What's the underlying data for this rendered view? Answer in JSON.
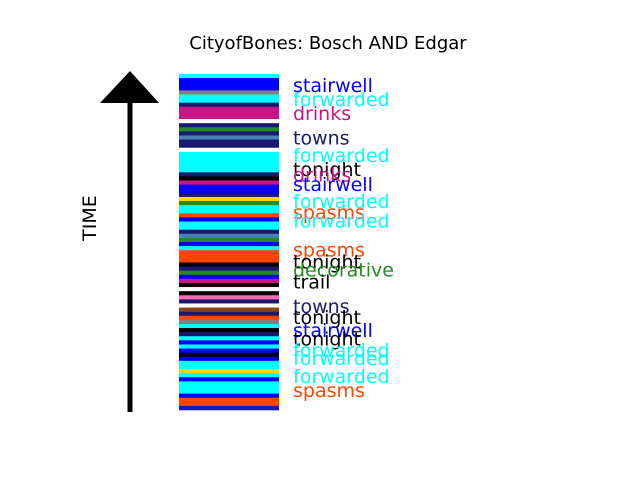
{
  "chart_data": {
    "type": "barcode-timeline",
    "title": "CityofBones: Bosch AND Edgar",
    "ylabel": "TIME",
    "colors": {
      "stairwell": "#0000ff",
      "forwarded": "#00ffff",
      "drinks": "#c71585",
      "towns": "#191970",
      "tonight": "#000000",
      "spasms": "#ff4500",
      "decorative": "#228b22",
      "trail": "#000000"
    },
    "stripes": [
      {
        "term": "forwarded",
        "color": "#00ffff"
      },
      {
        "term": "stairwell",
        "color": "#0000ff"
      },
      {
        "term": "stairwell",
        "color": "#0000ff"
      },
      {
        "term": "stairwell",
        "color": "#0000ff"
      },
      {
        "term": "",
        "color": "#808080"
      },
      {
        "term": "forwarded",
        "color": "#00ffff"
      },
      {
        "term": "forwarded",
        "color": "#00ffff"
      },
      {
        "term": "towns",
        "color": "#191970"
      },
      {
        "term": "drinks",
        "color": "#c71585"
      },
      {
        "term": "drinks",
        "color": "#c71585"
      },
      {
        "term": "drinks",
        "color": "#c71585"
      },
      {
        "term": "",
        "color": "#ffffff"
      },
      {
        "term": "towns",
        "color": "#191970"
      },
      {
        "term": "decorative",
        "color": "#228b22"
      },
      {
        "term": "towns",
        "color": "#191970"
      },
      {
        "term": "",
        "color": "#4682b4"
      },
      {
        "term": "towns",
        "color": "#191970"
      },
      {
        "term": "towns",
        "color": "#191970"
      },
      {
        "term": "",
        "color": "#ffffff"
      },
      {
        "term": "forwarded",
        "color": "#00ffff"
      },
      {
        "term": "forwarded",
        "color": "#00ffff"
      },
      {
        "term": "forwarded",
        "color": "#00ffff"
      },
      {
        "term": "forwarded",
        "color": "#00ffff"
      },
      {
        "term": "forwarded",
        "color": "#00ffff"
      },
      {
        "term": "towns",
        "color": "#191970"
      },
      {
        "term": "tonight",
        "color": "#000000"
      },
      {
        "term": "drinks",
        "color": "#c71585"
      },
      {
        "term": "stairwell",
        "color": "#0000ff"
      },
      {
        "term": "stairwell",
        "color": "#0000ff"
      },
      {
        "term": "towns",
        "color": "#191970"
      },
      {
        "term": "",
        "color": "#ffd700"
      },
      {
        "term": "decorative",
        "color": "#228b22"
      },
      {
        "term": "forwarded",
        "color": "#00ffff"
      },
      {
        "term": "forwarded",
        "color": "#00ffff"
      },
      {
        "term": "spasms",
        "color": "#ff4500"
      },
      {
        "term": "stairwell",
        "color": "#0000ff"
      },
      {
        "term": "forwarded",
        "color": "#00ffff"
      },
      {
        "term": "forwarded",
        "color": "#00ffff"
      },
      {
        "term": "towns",
        "color": "#191970"
      },
      {
        "term": "",
        "color": "#4682b4"
      },
      {
        "term": "decorative",
        "color": "#228b22"
      },
      {
        "term": "stairwell",
        "color": "#0000ff"
      },
      {
        "term": "forwarded",
        "color": "#00ffff"
      },
      {
        "term": "spasms",
        "color": "#ff4500"
      },
      {
        "term": "spasms",
        "color": "#ff4500"
      },
      {
        "term": "spasms",
        "color": "#ff4500"
      },
      {
        "term": "tonight",
        "color": "#000000"
      },
      {
        "term": "towns",
        "color": "#191970"
      },
      {
        "term": "decorative",
        "color": "#228b22"
      },
      {
        "term": "stairwell",
        "color": "#0000ff"
      },
      {
        "term": "drinks",
        "color": "#c71585"
      },
      {
        "term": "trail",
        "color": "#000000"
      },
      {
        "term": "",
        "color": "#ffffff"
      },
      {
        "term": "trail",
        "color": "#000000"
      },
      {
        "term": "",
        "color": "#ff69b4"
      },
      {
        "term": "towns",
        "color": "#191970"
      },
      {
        "term": "",
        "color": "#ffffff"
      },
      {
        "term": "",
        "color": "#8b4513"
      },
      {
        "term": "towns",
        "color": "#191970"
      },
      {
        "term": "spasms",
        "color": "#ff4500"
      },
      {
        "term": "",
        "color": "#808080"
      },
      {
        "term": "forwarded",
        "color": "#00ffff"
      },
      {
        "term": "tonight",
        "color": "#000000"
      },
      {
        "term": "towns",
        "color": "#191970"
      },
      {
        "term": "forwarded",
        "color": "#00ffff"
      },
      {
        "term": "stairwell",
        "color": "#0000ff"
      },
      {
        "term": "forwarded",
        "color": "#00ffff"
      },
      {
        "term": "stairwell",
        "color": "#0000ff"
      },
      {
        "term": "tonight",
        "color": "#000000"
      },
      {
        "term": "stairwell",
        "color": "#0000ff"
      },
      {
        "term": "forwarded",
        "color": "#00ffff"
      },
      {
        "term": "forwarded",
        "color": "#00ffff"
      },
      {
        "term": "",
        "color": "#ffd700"
      },
      {
        "term": "forwarded",
        "color": "#00ffff"
      },
      {
        "term": "stairwell",
        "color": "#0000ff"
      },
      {
        "term": "forwarded",
        "color": "#00ffff"
      },
      {
        "term": "forwarded",
        "color": "#00ffff"
      },
      {
        "term": "forwarded",
        "color": "#00ffff"
      },
      {
        "term": "stairwell",
        "color": "#0000ff"
      },
      {
        "term": "spasms",
        "color": "#ff4500"
      },
      {
        "term": "spasms",
        "color": "#ff4500"
      },
      {
        "term": "",
        "color": "#1a1ab0"
      }
    ],
    "labels": [
      {
        "text": "stairwell",
        "color": "#0000ff",
        "t": 0.982
      },
      {
        "text": "forwarded",
        "color": "#00ffff",
        "t": 0.938
      },
      {
        "text": "drinks",
        "color": "#c71585",
        "t": 0.894
      },
      {
        "text": "towns",
        "color": "#191970",
        "t": 0.818
      },
      {
        "text": "forwarded",
        "color": "#00ffff",
        "t": 0.762
      },
      {
        "text": "tonight",
        "color": "#000000",
        "t": 0.718
      },
      {
        "text": "drinks",
        "color": "#c71585",
        "t": 0.702
      },
      {
        "text": "stairwell",
        "color": "#0000ff",
        "t": 0.671
      },
      {
        "text": "forwarded",
        "color": "#00ffff",
        "t": 0.618
      },
      {
        "text": "spasms",
        "color": "#ff4500",
        "t": 0.583
      },
      {
        "text": "forwarded",
        "color": "#00ffff",
        "t": 0.556
      },
      {
        "text": "spasms",
        "color": "#ff4500",
        "t": 0.465
      },
      {
        "text": "tonight",
        "color": "#000000",
        "t": 0.427
      },
      {
        "text": "decorative",
        "color": "#228b22",
        "t": 0.403
      },
      {
        "text": "trail",
        "color": "#000000",
        "t": 0.365
      },
      {
        "text": "towns",
        "color": "#191970",
        "t": 0.288
      },
      {
        "text": "tonight",
        "color": "#000000",
        "t": 0.253
      },
      {
        "text": "stairwell",
        "color": "#0000ff",
        "t": 0.212
      },
      {
        "text": "tonight",
        "color": "#000000",
        "t": 0.185
      },
      {
        "text": "forwarded",
        "color": "#00ffff",
        "t": 0.15
      },
      {
        "text": "forwarded",
        "color": "#00ffff",
        "t": 0.124
      },
      {
        "text": "forwarded",
        "color": "#00ffff",
        "t": 0.068
      },
      {
        "text": "spasms",
        "color": "#ff4500",
        "t": 0.024
      }
    ]
  }
}
